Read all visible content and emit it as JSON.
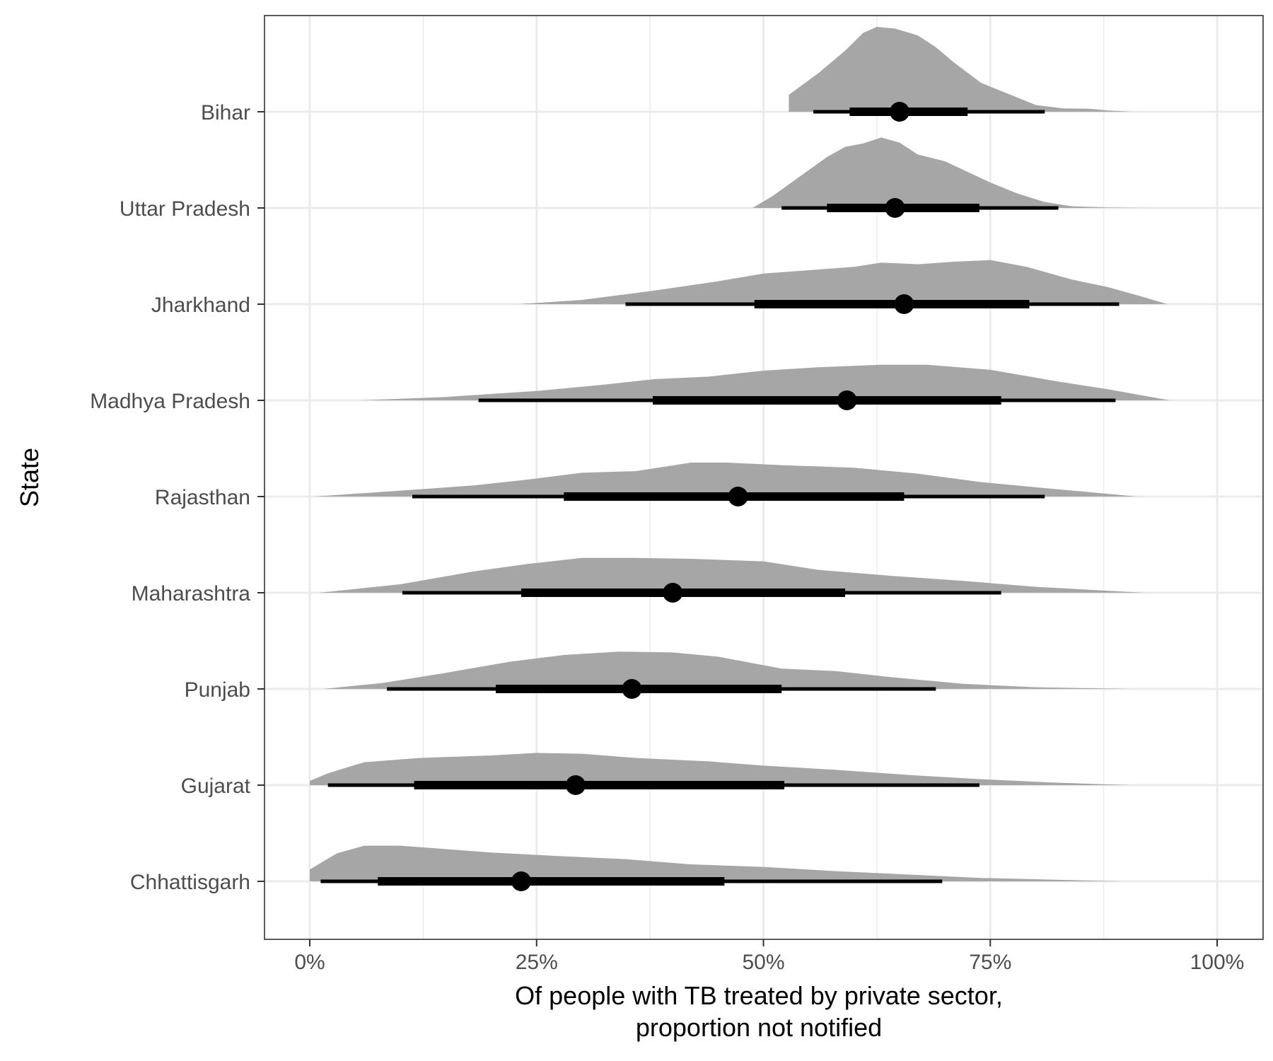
{
  "chart_data": {
    "type": "density-interval",
    "xlabel_lines": [
      "Of people with TB treated by private sector,",
      "proportion not notified"
    ],
    "ylabel": "State",
    "xlim": [
      -0.05,
      1.05
    ],
    "x_ticks": [
      0,
      0.25,
      0.5,
      0.75,
      1.0
    ],
    "x_tick_labels": [
      "0%",
      "25%",
      "50%",
      "75%",
      "100%"
    ],
    "grid": true,
    "colors": {
      "density": "#a6a6a6",
      "interval": "#000000",
      "grid": "#ebebeb",
      "panel_border": "#333333"
    },
    "states": [
      {
        "name": "Bihar",
        "median": 0.65,
        "inner": [
          0.595,
          0.725
        ],
        "outer": [
          0.555,
          0.81
        ],
        "range": [
          0.528,
          0.907
        ],
        "density": [
          [
            0.528,
            0.03
          ],
          [
            0.528,
            0.2
          ],
          [
            0.56,
            0.45
          ],
          [
            0.59,
            0.72
          ],
          [
            0.61,
            0.93
          ],
          [
            0.625,
            1.0
          ],
          [
            0.645,
            0.98
          ],
          [
            0.67,
            0.9
          ],
          [
            0.69,
            0.76
          ],
          [
            0.71,
            0.58
          ],
          [
            0.74,
            0.34
          ],
          [
            0.77,
            0.21
          ],
          [
            0.8,
            0.08
          ],
          [
            0.83,
            0.04
          ],
          [
            0.86,
            0.035
          ],
          [
            0.88,
            0.015
          ],
          [
            0.907,
            0.0
          ]
        ]
      },
      {
        "name": "Uttar Pradesh",
        "median": 0.645,
        "inner": [
          0.57,
          0.738
        ],
        "outer": [
          0.52,
          0.825
        ],
        "range": [
          0.488,
          0.925
        ],
        "density": [
          [
            0.488,
            0.0
          ],
          [
            0.51,
            0.14
          ],
          [
            0.54,
            0.37
          ],
          [
            0.57,
            0.6
          ],
          [
            0.59,
            0.72
          ],
          [
            0.61,
            0.76
          ],
          [
            0.63,
            0.83
          ],
          [
            0.65,
            0.77
          ],
          [
            0.67,
            0.63
          ],
          [
            0.7,
            0.55
          ],
          [
            0.72,
            0.45
          ],
          [
            0.75,
            0.3
          ],
          [
            0.78,
            0.17
          ],
          [
            0.81,
            0.07
          ],
          [
            0.84,
            0.02
          ],
          [
            0.88,
            0.005
          ],
          [
            0.925,
            0.0
          ]
        ]
      },
      {
        "name": "Jharkhand",
        "median": 0.655,
        "inner": [
          0.49,
          0.793
        ],
        "outer": [
          0.348,
          0.892
        ],
        "range": [
          0.23,
          0.945
        ],
        "density": [
          [
            0.23,
            0.0
          ],
          [
            0.3,
            0.05
          ],
          [
            0.38,
            0.16
          ],
          [
            0.45,
            0.27
          ],
          [
            0.5,
            0.36
          ],
          [
            0.55,
            0.4
          ],
          [
            0.6,
            0.44
          ],
          [
            0.63,
            0.49
          ],
          [
            0.67,
            0.47
          ],
          [
            0.71,
            0.5
          ],
          [
            0.75,
            0.52
          ],
          [
            0.79,
            0.44
          ],
          [
            0.84,
            0.29
          ],
          [
            0.88,
            0.2
          ],
          [
            0.92,
            0.08
          ],
          [
            0.945,
            0.0
          ]
        ]
      },
      {
        "name": "Madhya Pradesh",
        "median": 0.592,
        "inner": [
          0.378,
          0.762
        ],
        "outer": [
          0.186,
          0.888
        ],
        "range": [
          0.055,
          0.948
        ],
        "density": [
          [
            0.055,
            0.0
          ],
          [
            0.15,
            0.04
          ],
          [
            0.25,
            0.11
          ],
          [
            0.32,
            0.18
          ],
          [
            0.38,
            0.25
          ],
          [
            0.44,
            0.28
          ],
          [
            0.5,
            0.35
          ],
          [
            0.56,
            0.39
          ],
          [
            0.63,
            0.42
          ],
          [
            0.68,
            0.42
          ],
          [
            0.75,
            0.36
          ],
          [
            0.82,
            0.23
          ],
          [
            0.88,
            0.13
          ],
          [
            0.948,
            0.0
          ]
        ]
      },
      {
        "name": "Rajasthan",
        "median": 0.472,
        "inner": [
          0.28,
          0.655
        ],
        "outer": [
          0.113,
          0.81
        ],
        "range": [
          0.005,
          0.912
        ],
        "density": [
          [
            0.005,
            0.0
          ],
          [
            0.1,
            0.07
          ],
          [
            0.18,
            0.13
          ],
          [
            0.24,
            0.2
          ],
          [
            0.3,
            0.28
          ],
          [
            0.36,
            0.3
          ],
          [
            0.42,
            0.4
          ],
          [
            0.46,
            0.4
          ],
          [
            0.52,
            0.37
          ],
          [
            0.6,
            0.34
          ],
          [
            0.67,
            0.27
          ],
          [
            0.74,
            0.17
          ],
          [
            0.82,
            0.09
          ],
          [
            0.912,
            0.0
          ]
        ]
      },
      {
        "name": "Maharashtra",
        "median": 0.4,
        "inner": [
          0.233,
          0.59
        ],
        "outer": [
          0.102,
          0.762
        ],
        "range": [
          0.01,
          0.92
        ],
        "density": [
          [
            0.01,
            0.0
          ],
          [
            0.1,
            0.1
          ],
          [
            0.18,
            0.25
          ],
          [
            0.24,
            0.34
          ],
          [
            0.3,
            0.41
          ],
          [
            0.36,
            0.41
          ],
          [
            0.42,
            0.4
          ],
          [
            0.5,
            0.37
          ],
          [
            0.56,
            0.27
          ],
          [
            0.64,
            0.2
          ],
          [
            0.72,
            0.14
          ],
          [
            0.8,
            0.07
          ],
          [
            0.92,
            0.0
          ]
        ]
      },
      {
        "name": "Punjab",
        "median": 0.355,
        "inner": [
          0.205,
          0.52
        ],
        "outer": [
          0.085,
          0.69
        ],
        "range": [
          0.015,
          0.905
        ],
        "density": [
          [
            0.015,
            0.0
          ],
          [
            0.08,
            0.07
          ],
          [
            0.15,
            0.19
          ],
          [
            0.22,
            0.32
          ],
          [
            0.28,
            0.4
          ],
          [
            0.34,
            0.44
          ],
          [
            0.4,
            0.43
          ],
          [
            0.45,
            0.38
          ],
          [
            0.52,
            0.24
          ],
          [
            0.58,
            0.21
          ],
          [
            0.64,
            0.14
          ],
          [
            0.72,
            0.06
          ],
          [
            0.8,
            0.02
          ],
          [
            0.905,
            0.0
          ]
        ]
      },
      {
        "name": "Gujarat",
        "median": 0.293,
        "inner": [
          0.115,
          0.523
        ],
        "outer": [
          0.02,
          0.738
        ],
        "range": [
          0.0,
          0.905
        ],
        "density": [
          [
            0.0,
            0.05
          ],
          [
            0.02,
            0.14
          ],
          [
            0.06,
            0.27
          ],
          [
            0.12,
            0.32
          ],
          [
            0.2,
            0.35
          ],
          [
            0.25,
            0.38
          ],
          [
            0.3,
            0.37
          ],
          [
            0.36,
            0.32
          ],
          [
            0.44,
            0.28
          ],
          [
            0.5,
            0.23
          ],
          [
            0.58,
            0.18
          ],
          [
            0.66,
            0.12
          ],
          [
            0.74,
            0.07
          ],
          [
            0.82,
            0.03
          ],
          [
            0.905,
            0.0
          ]
        ]
      },
      {
        "name": "Chhattisgarh",
        "median": 0.233,
        "inner": [
          0.075,
          0.457
        ],
        "outer": [
          0.012,
          0.697
        ],
        "range": [
          0.0,
          0.895
        ],
        "density": [
          [
            0.0,
            0.0
          ],
          [
            0.0,
            0.14
          ],
          [
            0.03,
            0.33
          ],
          [
            0.06,
            0.42
          ],
          [
            0.1,
            0.42
          ],
          [
            0.15,
            0.38
          ],
          [
            0.2,
            0.34
          ],
          [
            0.27,
            0.3
          ],
          [
            0.35,
            0.26
          ],
          [
            0.42,
            0.2
          ],
          [
            0.5,
            0.17
          ],
          [
            0.58,
            0.12
          ],
          [
            0.66,
            0.08
          ],
          [
            0.74,
            0.04
          ],
          [
            0.82,
            0.02
          ],
          [
            0.895,
            0.0
          ]
        ]
      }
    ]
  }
}
